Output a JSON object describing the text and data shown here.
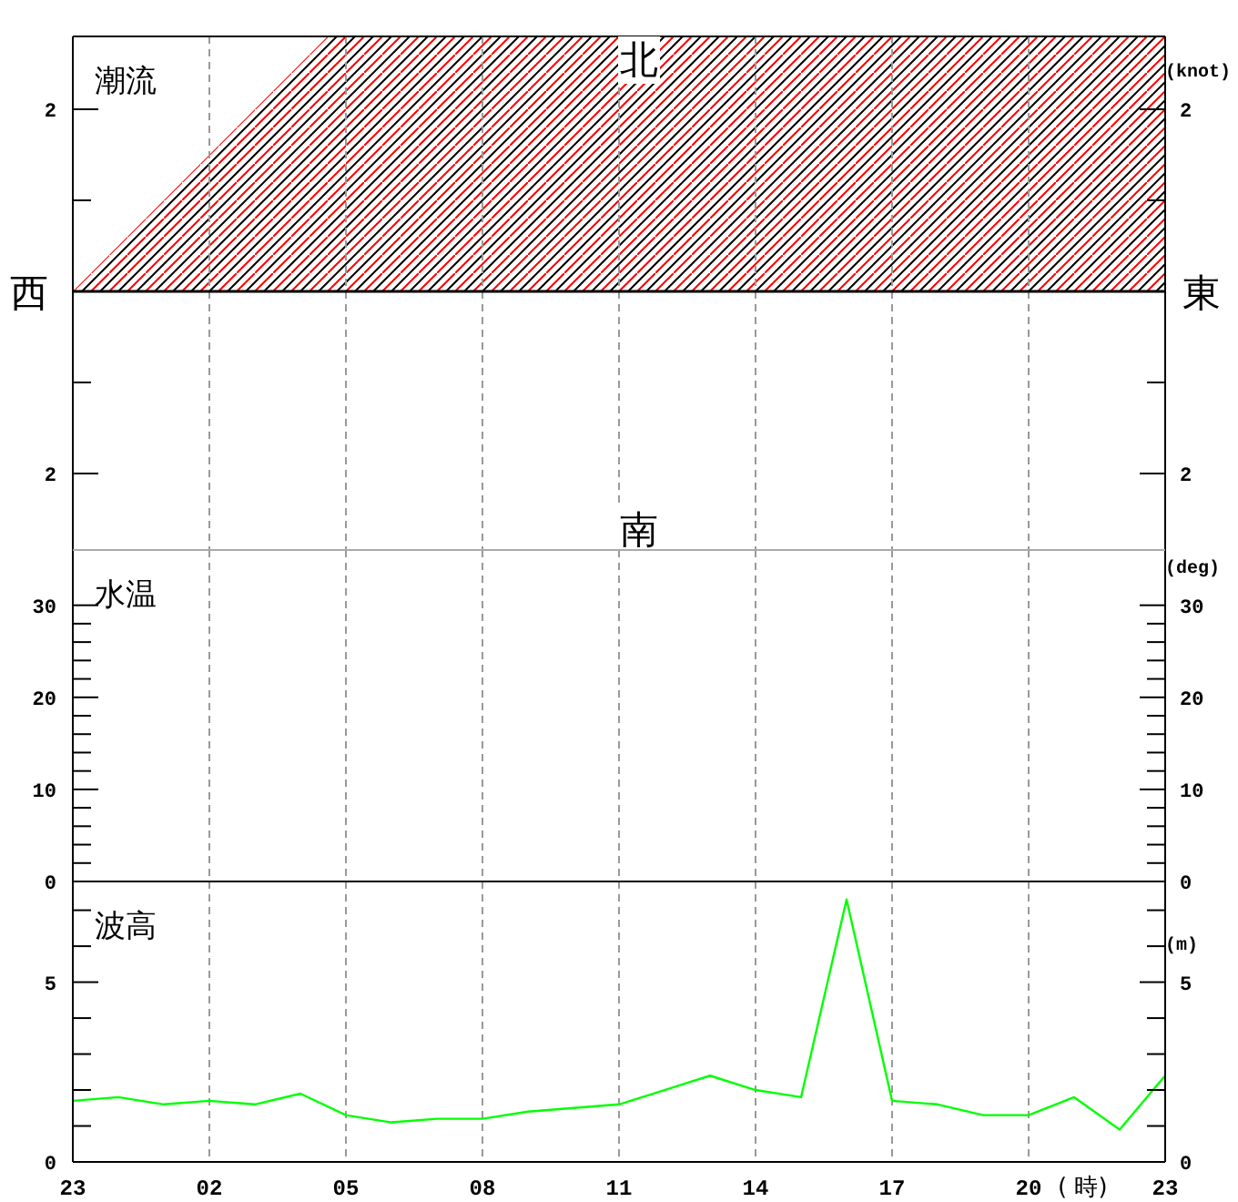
{
  "chart_data": [
    {
      "type": "line",
      "title": "潮流",
      "categories": [
        "23",
        null,
        null,
        "02",
        null,
        null,
        "05",
        null,
        null,
        "08",
        null,
        null,
        "11",
        null,
        null,
        "14",
        null,
        null,
        "17",
        null,
        null,
        "20",
        null,
        null,
        "23"
      ],
      "ylim": [
        -2.84,
        2.8
      ],
      "yticks": [
        {
          "value": -2,
          "label": "2"
        },
        {
          "value": -1,
          "label": null
        },
        {
          "value": 1,
          "label": null
        },
        {
          "value": 2,
          "label": "2"
        }
      ],
      "y2lim": [
        -2.84,
        2.8
      ],
      "y2ticks": [
        {
          "value": -2,
          "label": "2"
        },
        {
          "value": -1,
          "label": null
        },
        {
          "value": 1,
          "label": null
        },
        {
          "value": 2,
          "label": "2"
        }
      ],
      "y2label": "(knot)",
      "grid": "x",
      "tick_labels": "y",
      "ref_lines": [
        {
          "axis": "y",
          "value": 0,
          "color": "#000000"
        }
      ],
      "annotations": [
        "北",
        "南",
        "西",
        "東"
      ]
    },
    {
      "type": "line",
      "title": "水温",
      "categories": [
        "23",
        null,
        null,
        "02",
        null,
        null,
        "05",
        null,
        null,
        "08",
        null,
        null,
        "11",
        null,
        null,
        "14",
        null,
        null,
        "17",
        null,
        null,
        "20",
        null,
        null,
        "23"
      ],
      "ylim": [
        0,
        36
      ],
      "yticks": [
        0,
        {
          "value": 2,
          "label": null
        },
        {
          "value": 4,
          "label": null
        },
        {
          "value": 6,
          "label": null
        },
        {
          "value": 8,
          "label": null
        },
        10,
        {
          "value": 12,
          "label": null
        },
        {
          "value": 14,
          "label": null
        },
        {
          "value": 16,
          "label": null
        },
        {
          "value": 18,
          "label": null
        },
        20,
        {
          "value": 22,
          "label": null
        },
        {
          "value": 24,
          "label": null
        },
        {
          "value": 26,
          "label": null
        },
        {
          "value": 28,
          "label": null
        },
        30
      ],
      "y2lim": [
        0,
        36
      ],
      "y2ticks": [
        0,
        {
          "value": 2,
          "label": null
        },
        {
          "value": 4,
          "label": null
        },
        {
          "value": 6,
          "label": null
        },
        {
          "value": 8,
          "label": null
        },
        10,
        {
          "value": 12,
          "label": null
        },
        {
          "value": 14,
          "label": null
        },
        {
          "value": 16,
          "label": null
        },
        {
          "value": 18,
          "label": null
        },
        20,
        {
          "value": 22,
          "label": null
        },
        {
          "value": 24,
          "label": null
        },
        {
          "value": 26,
          "label": null
        },
        {
          "value": 28,
          "label": null
        },
        30
      ],
      "y2label": "(deg)",
      "grid": "x",
      "tick_labels": "y"
    },
    {
      "type": "line",
      "title": "波高",
      "categories": [
        "23",
        null,
        null,
        "02",
        null,
        null,
        "05",
        null,
        null,
        "08",
        null,
        null,
        "11",
        null,
        null,
        "14",
        null,
        null,
        "17",
        null,
        null,
        "20",
        null,
        null,
        "23"
      ],
      "series": [
        {
          "color": "#00ff00",
          "values": [
            1.7,
            1.8,
            1.6,
            1.7,
            1.6,
            1.9,
            1.3,
            1.1,
            1.2,
            1.2,
            1.4,
            1.5,
            1.6,
            2.0,
            2.4,
            2.0,
            1.8,
            7.3,
            1.7,
            1.6,
            1.3,
            1.3,
            1.8,
            0.9,
            2.4
          ]
        }
      ],
      "xlabel": "( 時)",
      "ylim": [
        0,
        7.8
      ],
      "yticks": [
        0,
        {
          "value": 1,
          "label": null
        },
        {
          "value": 2,
          "label": null
        },
        {
          "value": 3,
          "label": null
        },
        {
          "value": 4,
          "label": null
        },
        5,
        {
          "value": 6,
          "label": null
        },
        {
          "value": 7,
          "label": null
        }
      ],
      "y2lim": [
        0,
        7.8
      ],
      "y2ticks": [
        0,
        {
          "value": 1,
          "label": null
        },
        {
          "value": 2,
          "label": null
        },
        {
          "value": 3,
          "label": null
        },
        {
          "value": 4,
          "label": null
        },
        5,
        {
          "value": 6,
          "label": null
        },
        {
          "value": 7,
          "label": null
        }
      ],
      "y2label": "(m)",
      "grid": "x"
    }
  ]
}
